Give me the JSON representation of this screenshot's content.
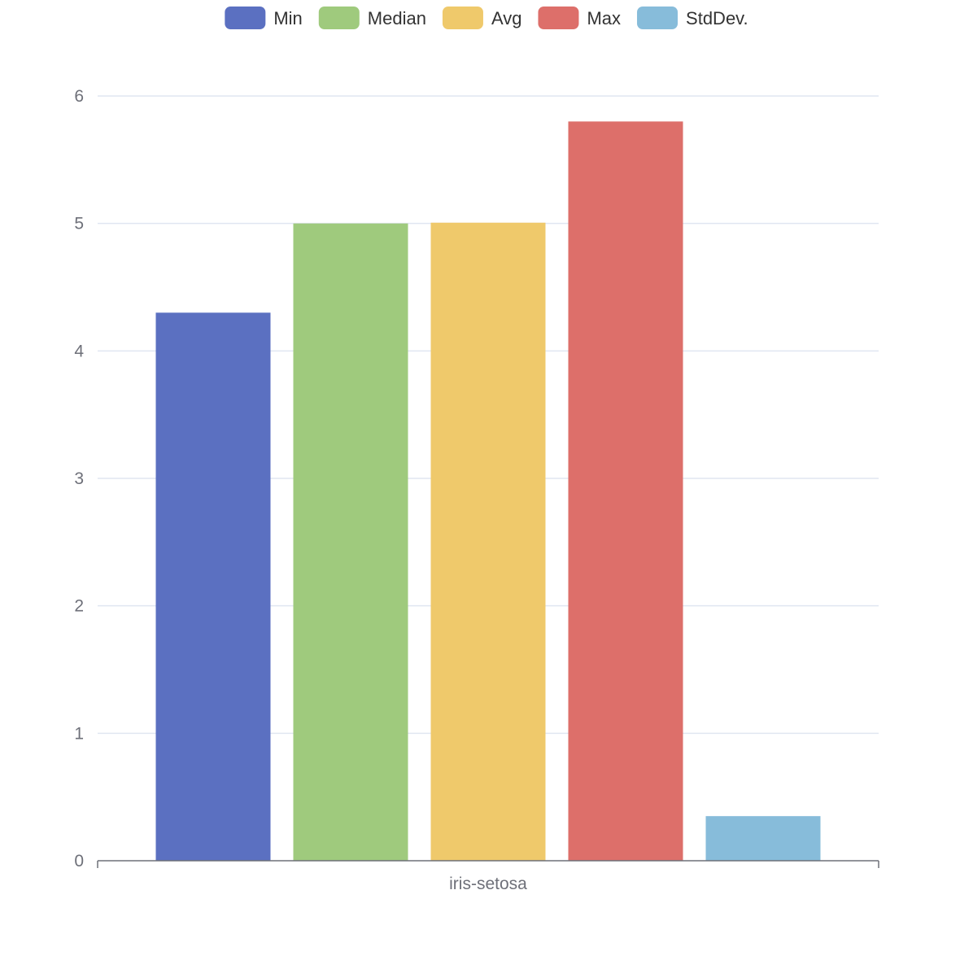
{
  "chart_data": {
    "type": "bar",
    "title": "",
    "categories": [
      "iris-setosa"
    ],
    "series": [
      {
        "name": "Min",
        "values": [
          4.3
        ],
        "color": "#5b70c1"
      },
      {
        "name": "Median",
        "values": [
          5.0
        ],
        "color": "#9fca7d"
      },
      {
        "name": "Avg",
        "values": [
          5.006
        ],
        "color": "#efc96b"
      },
      {
        "name": "Max",
        "values": [
          5.8
        ],
        "color": "#dd6f6a"
      },
      {
        "name": "StdDev.",
        "values": [
          0.35
        ],
        "color": "#87bcda"
      }
    ],
    "xlabel": "",
    "ylabel": "",
    "ylim": [
      0,
      6
    ],
    "yticks": [
      "0",
      "1",
      "2",
      "3",
      "4",
      "5",
      "6"
    ],
    "grid": true,
    "legend_position": "top-center"
  }
}
